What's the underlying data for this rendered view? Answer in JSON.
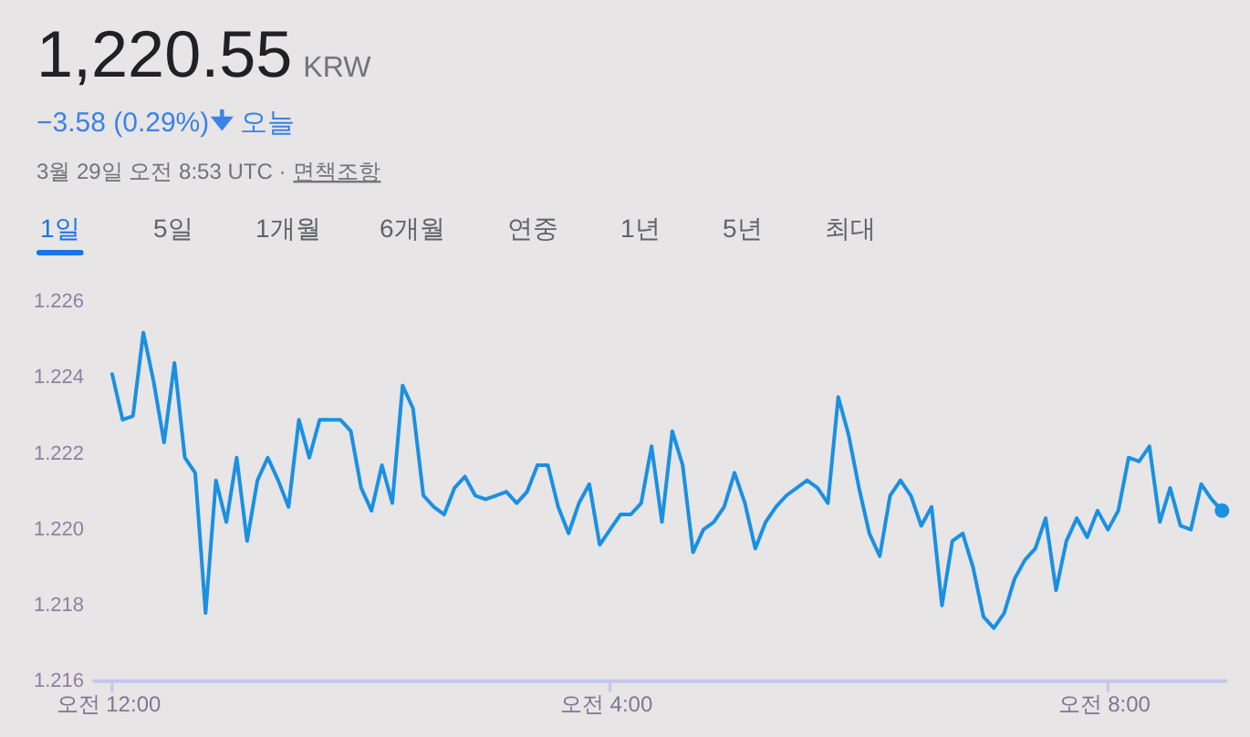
{
  "chart_data": {
    "type": "line",
    "title": "1,220.55",
    "annotations": [
      "KRW",
      "−3.58 (0.29%)",
      "오늘",
      "3월 29일 오전 8:53 UTC ·",
      "면책조항",
      "1일",
      "5일",
      "1개월",
      "6개월",
      "연중",
      "1년",
      "5년",
      "최대"
    ],
    "categories": [
      "오전 12:00",
      null,
      null,
      null,
      null,
      null,
      null,
      null,
      null,
      null,
      null,
      null,
      null,
      null,
      null,
      null,
      null,
      null,
      null,
      null,
      null,
      null,
      null,
      null,
      null,
      null,
      null,
      null,
      null,
      null,
      null,
      null,
      null,
      null,
      null,
      null,
      null,
      null,
      null,
      null,
      null,
      null,
      null,
      null,
      null,
      null,
      null,
      null,
      "오전 4:00",
      null,
      null,
      null,
      null,
      null,
      null,
      null,
      null,
      null,
      null,
      null,
      null,
      null,
      null,
      null,
      null,
      null,
      null,
      null,
      null,
      null,
      null,
      null,
      null,
      null,
      null,
      null,
      null,
      null,
      null,
      null,
      null,
      null,
      null,
      null,
      null,
      null,
      null,
      null,
      null,
      null,
      null,
      null,
      null,
      null,
      null,
      null,
      "오전 8:00",
      null,
      null,
      null,
      null,
      null,
      null,
      null,
      null,
      null,
      null,
      null
    ],
    "series": [
      {
        "color": "#1a90e2",
        "values": [
          1.2241,
          1.2229,
          1.223,
          1.2252,
          1.2239,
          1.2223,
          1.2244,
          1.2219,
          1.2215,
          1.2178,
          1.2213,
          1.2202,
          1.2219,
          1.2197,
          1.2213,
          1.2219,
          1.2213,
          1.2206,
          1.2229,
          1.2219,
          1.2229,
          1.2229,
          1.2229,
          1.2226,
          1.2211,
          1.2205,
          1.2217,
          1.2207,
          1.2238,
          1.2232,
          1.2209,
          1.2206,
          1.2204,
          1.2211,
          1.2214,
          1.2209,
          1.2208,
          1.2209,
          1.221,
          1.2207,
          1.221,
          1.2217,
          1.2217,
          1.2206,
          1.2199,
          1.2207,
          1.2212,
          1.2196,
          1.22,
          1.2204,
          1.2204,
          1.2207,
          1.2222,
          1.2202,
          1.2226,
          1.2217,
          1.2194,
          1.22,
          1.2202,
          1.2206,
          1.2215,
          1.2207,
          1.2195,
          1.2202,
          1.2206,
          1.2209,
          1.2211,
          1.2213,
          1.2211,
          1.2207,
          1.2235,
          1.2225,
          1.2211,
          1.2199,
          1.2193,
          1.2209,
          1.2213,
          1.2209,
          1.2201,
          1.2206,
          1.218,
          1.2197,
          1.2199,
          1.219,
          1.2177,
          1.2174,
          1.2178,
          1.2187,
          1.2192,
          1.2195,
          1.2203,
          1.2184,
          1.2197,
          1.2203,
          1.2198,
          1.2205,
          1.22,
          1.2205,
          1.2219,
          1.2218,
          1.2222,
          1.2202,
          1.2211,
          1.2201,
          1.22,
          1.2212,
          1.2208,
          1.2205
        ]
      }
    ],
    "ylim": [
      1.216,
      1.226
    ],
    "yticks": [
      {
        "value": 1.216,
        "label": "1.216"
      },
      {
        "value": 1.218,
        "label": "1.218"
      },
      {
        "value": 1.22,
        "label": "1.220"
      },
      {
        "value": 1.222,
        "label": "1.222"
      },
      {
        "value": 1.224,
        "label": "1.224"
      },
      {
        "value": 1.226,
        "label": "1.226"
      }
    ],
    "grid": false
  }
}
